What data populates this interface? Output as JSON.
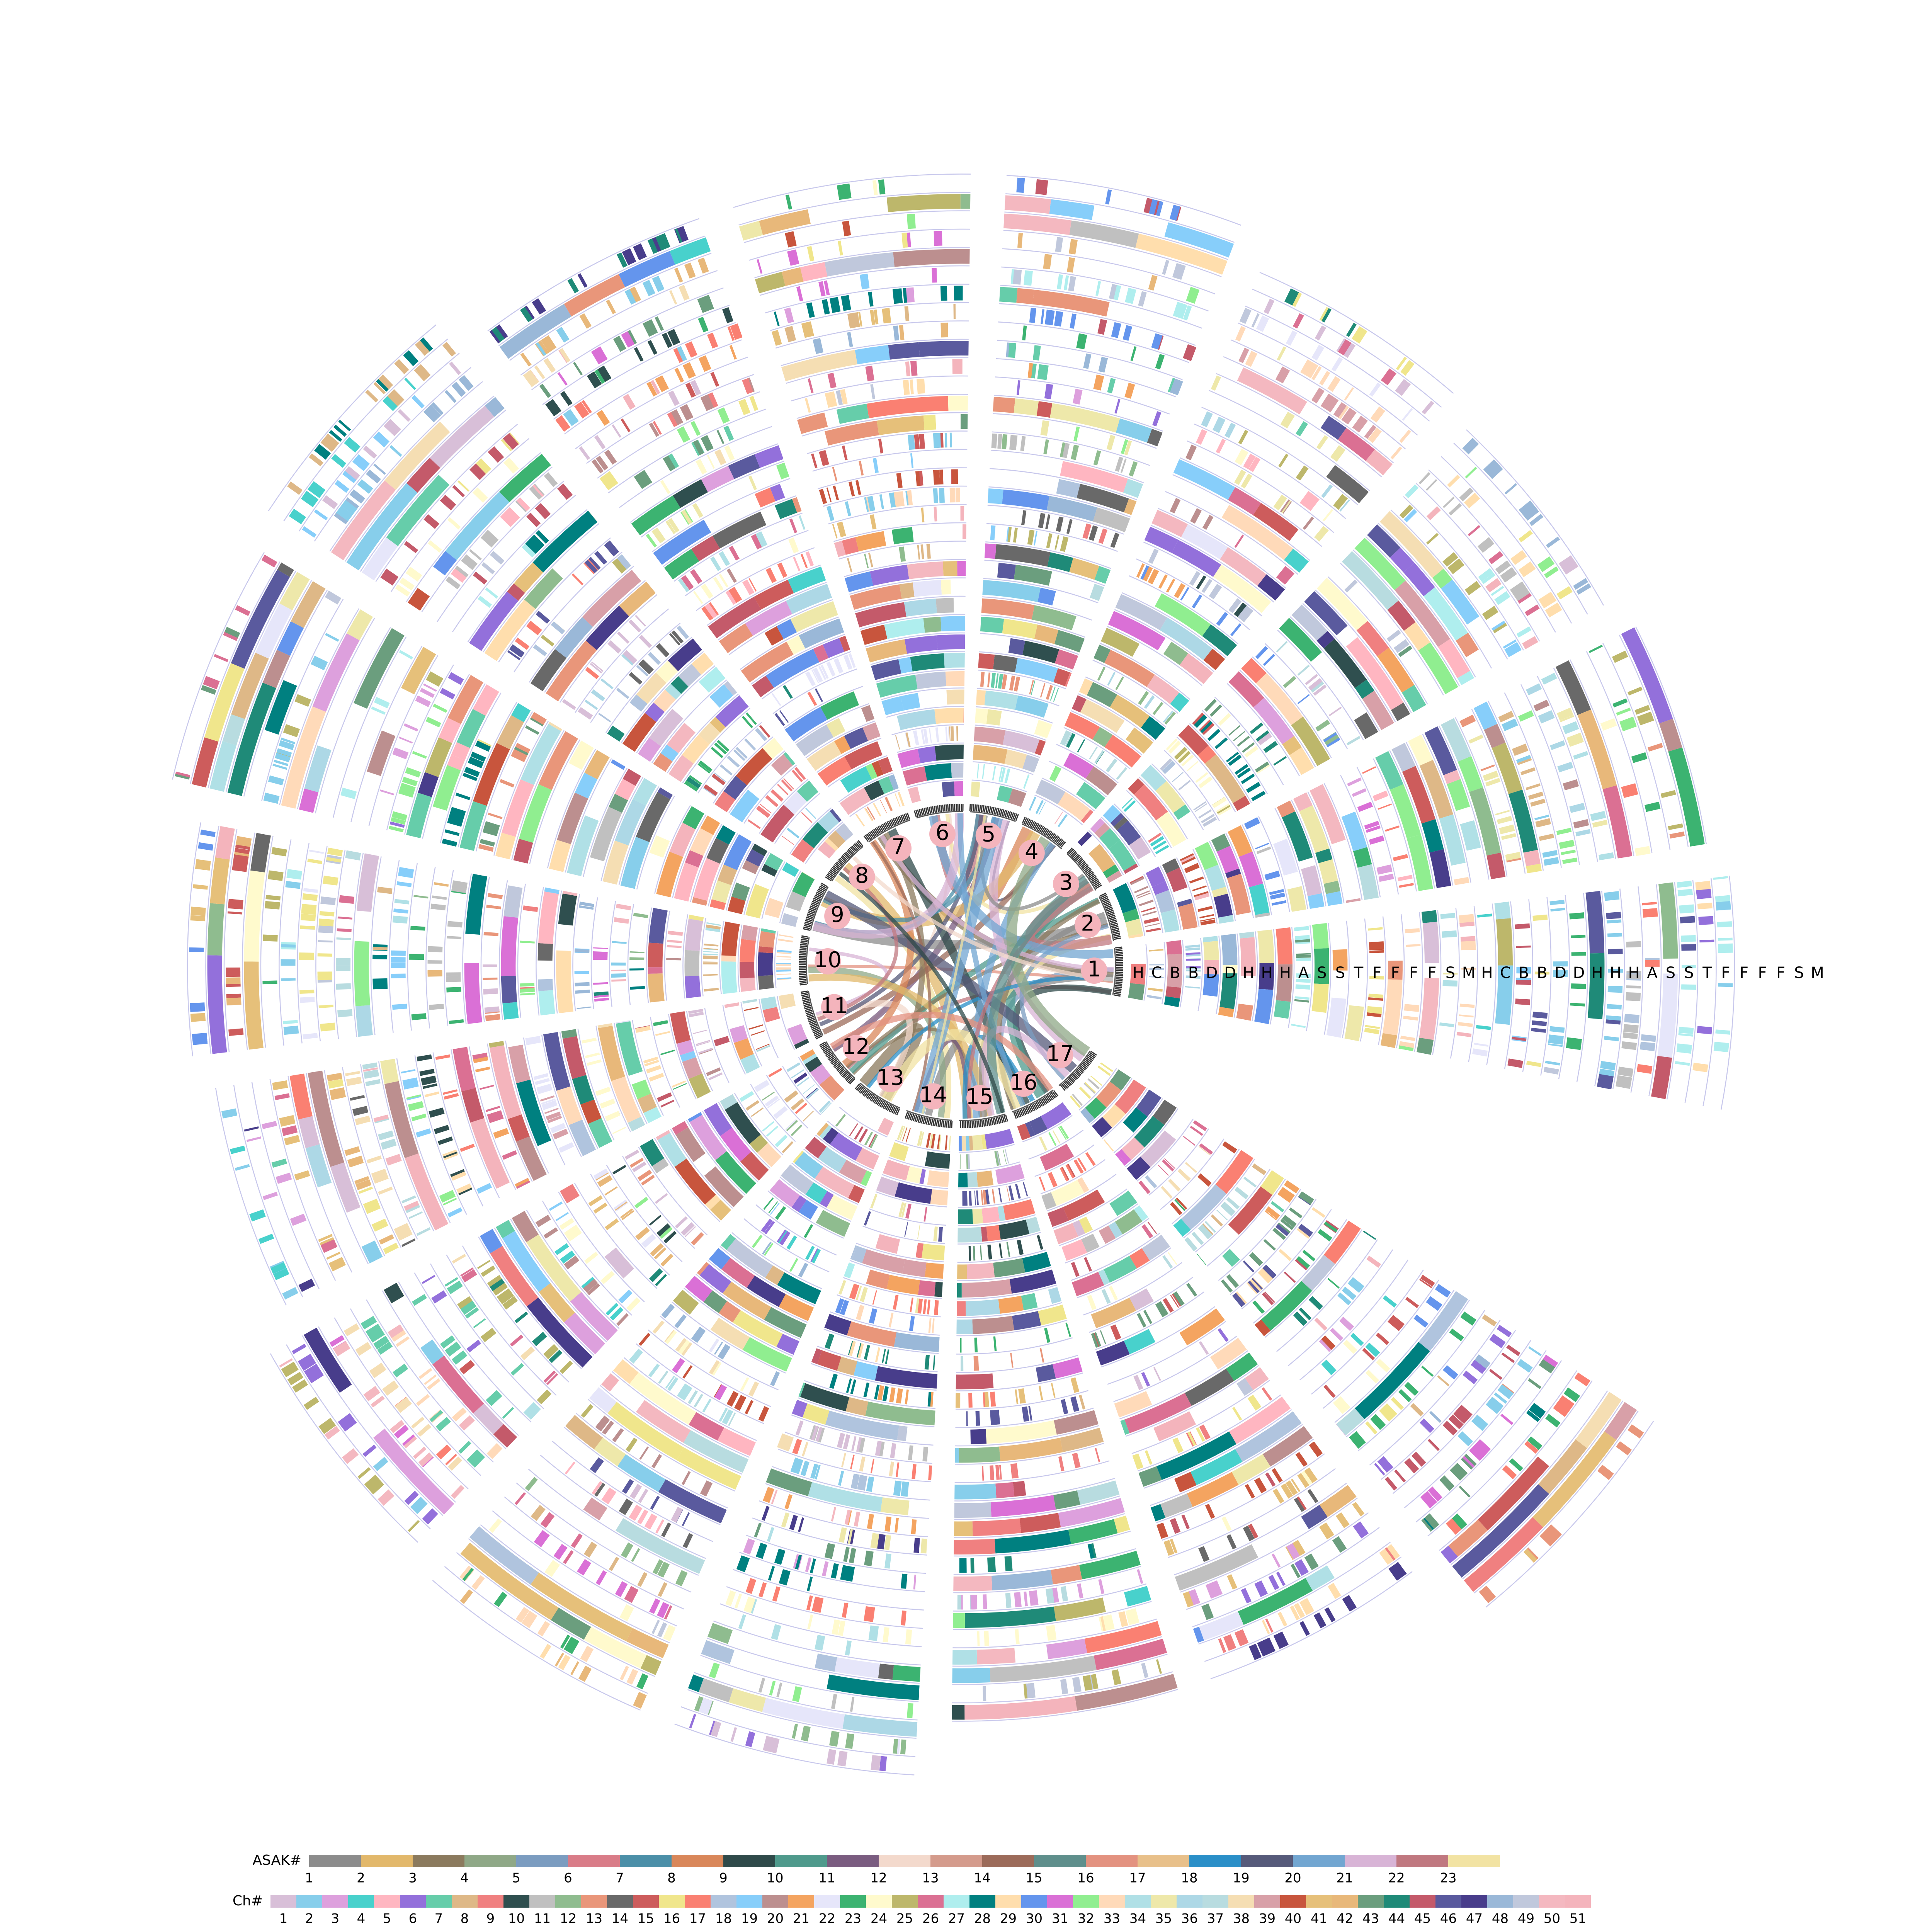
{
  "sectors": [
    "1",
    "2",
    "3",
    "4",
    "5",
    "6",
    "7",
    "8",
    "9",
    "10",
    "11",
    "12",
    "13",
    "14",
    "15",
    "16",
    "17"
  ],
  "track_labels": [
    "H",
    "C",
    "B",
    "B",
    "D",
    "D",
    "H",
    "H",
    "H",
    "A",
    "S",
    "S",
    "T",
    "F",
    "F",
    "F",
    "F",
    "S",
    "M",
    "H",
    "C",
    "B",
    "B",
    "D",
    "D",
    "H",
    "H",
    "H",
    "A",
    "S",
    "S",
    "T",
    "F",
    "F",
    "F",
    "F",
    "S",
    "M"
  ],
  "asak_legend": {
    "title": "ASAK#",
    "items": [
      {
        "label": "1",
        "color": "#8c8c8c"
      },
      {
        "label": "2",
        "color": "#e2b86b"
      },
      {
        "label": "3",
        "color": "#8b7a5e"
      },
      {
        "label": "4",
        "color": "#8fa887"
      },
      {
        "label": "5",
        "color": "#7b9cc0"
      },
      {
        "label": "6",
        "color": "#d97c88"
      },
      {
        "label": "7",
        "color": "#4b8fa8"
      },
      {
        "label": "8",
        "color": "#d9875a"
      },
      {
        "label": "9",
        "color": "#2f4a4a"
      },
      {
        "label": "10",
        "color": "#4f9a8c"
      },
      {
        "label": "11",
        "color": "#7a5c80"
      },
      {
        "label": "12",
        "color": "#f3d9cc"
      },
      {
        "label": "13",
        "color": "#d49b8c"
      },
      {
        "label": "14",
        "color": "#9c6b5a"
      },
      {
        "label": "15",
        "color": "#5f8f8c"
      },
      {
        "label": "16",
        "color": "#e39280"
      },
      {
        "label": "17",
        "color": "#e8c08a"
      },
      {
        "label": "18",
        "color": "#2a8fc8"
      },
      {
        "label": "19",
        "color": "#565a7a"
      },
      {
        "label": "20",
        "color": "#72a6d1"
      },
      {
        "label": "21",
        "color": "#d8b4d6"
      },
      {
        "label": "22",
        "color": "#c07880"
      },
      {
        "label": "23",
        "color": "#f2e3a3"
      }
    ]
  },
  "ch_legend": {
    "title": "Ch#",
    "items": [
      {
        "label": "1",
        "color": "#d8bfd8"
      },
      {
        "label": "2",
        "color": "#87ceeb"
      },
      {
        "label": "3",
        "color": "#dda0dd"
      },
      {
        "label": "4",
        "color": "#48d1cc"
      },
      {
        "label": "5",
        "color": "#ffb6c1"
      },
      {
        "label": "6",
        "color": "#9370db"
      },
      {
        "label": "7",
        "color": "#66cdaa"
      },
      {
        "label": "8",
        "color": "#deb887"
      },
      {
        "label": "9",
        "color": "#f08080"
      },
      {
        "label": "10",
        "color": "#2f4f4f"
      },
      {
        "label": "11",
        "color": "#c0c0c0"
      },
      {
        "label": "12",
        "color": "#8fbc8f"
      },
      {
        "label": "13",
        "color": "#e9967a"
      },
      {
        "label": "14",
        "color": "#696969"
      },
      {
        "label": "15",
        "color": "#cd5c5c"
      },
      {
        "label": "16",
        "color": "#f0e68c"
      },
      {
        "label": "17",
        "color": "#fa8072"
      },
      {
        "label": "18",
        "color": "#b0c4de"
      },
      {
        "label": "19",
        "color": "#87cefa"
      },
      {
        "label": "20",
        "color": "#bc8f8f"
      },
      {
        "label": "21",
        "color": "#f4a460"
      },
      {
        "label": "22",
        "color": "#e6e6fa"
      },
      {
        "label": "23",
        "color": "#3cb371"
      },
      {
        "label": "24",
        "color": "#fffacd"
      },
      {
        "label": "25",
        "color": "#bdb76b"
      },
      {
        "label": "26",
        "color": "#db7093"
      },
      {
        "label": "27",
        "color": "#afeeee"
      },
      {
        "label": "28",
        "color": "#008080"
      },
      {
        "label": "29",
        "color": "#ffdead"
      },
      {
        "label": "30",
        "color": "#6495ed"
      },
      {
        "label": "31",
        "color": "#da70d6"
      },
      {
        "label": "32",
        "color": "#90ee90"
      },
      {
        "label": "33",
        "color": "#ffdab9"
      },
      {
        "label": "34",
        "color": "#b0e0e6"
      },
      {
        "label": "35",
        "color": "#eee8aa"
      },
      {
        "label": "36",
        "color": "#add8e6"
      },
      {
        "label": "37",
        "color": "#b8dce0"
      },
      {
        "label": "38",
        "color": "#f5deb3"
      },
      {
        "label": "39",
        "color": "#d8a0a8"
      },
      {
        "label": "40",
        "color": "#c8553d"
      },
      {
        "label": "41",
        "color": "#e6c07a"
      },
      {
        "label": "42",
        "color": "#e8b87a"
      },
      {
        "label": "43",
        "color": "#6b9e7e"
      },
      {
        "label": "44",
        "color": "#1f8a78"
      },
      {
        "label": "45",
        "color": "#c45a6a"
      },
      {
        "label": "46",
        "color": "#5a5a9e"
      },
      {
        "label": "47",
        "color": "#483d8b"
      },
      {
        "label": "48",
        "color": "#9ab8d8"
      },
      {
        "label": "49",
        "color": "#c0c8dc"
      },
      {
        "label": "50",
        "color": "#f4b8c0"
      },
      {
        "label": "51",
        "color": "#f4b4bc"
      }
    ]
  }
}
